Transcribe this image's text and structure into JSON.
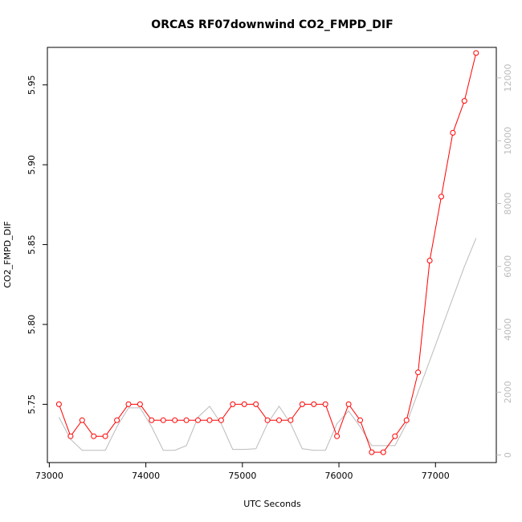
{
  "chart_data": {
    "type": "line",
    "title": "ORCAS RF07downwind CO2_FMPD_DIF",
    "xlabel": "UTC Seconds",
    "ylabel": "CO2_FMPD_DIF",
    "xlim": [
      72980,
      77630
    ],
    "ylim": [
      5.7135,
      5.9735
    ],
    "y2lim": [
      -240,
      12970
    ],
    "x_ticks": [
      73000,
      74000,
      75000,
      76000,
      77000
    ],
    "x_tick_labels": [
      "73000",
      "74000",
      "75000",
      "76000",
      "77000"
    ],
    "y_ticks": [
      5.75,
      5.8,
      5.85,
      5.9,
      5.95
    ],
    "y_tick_labels": [
      "5.75",
      "5.80",
      "5.85",
      "5.90",
      "5.95"
    ],
    "y2_ticks": [
      0,
      2000,
      4000,
      6000,
      8000,
      10000,
      12000
    ],
    "y2_tick_labels": [
      "0",
      "2000",
      "4000",
      "6000",
      "8000",
      "10000",
      "12000"
    ],
    "grid": false,
    "series": [
      {
        "axis": "left",
        "color": "#ff0000",
        "marker": "open-circle",
        "x": [
          73100,
          73220,
          73340,
          73460,
          73580,
          73700,
          73820,
          73940,
          74060,
          74180,
          74300,
          74420,
          74540,
          74660,
          74780,
          74900,
          75020,
          75140,
          75260,
          75380,
          75500,
          75620,
          75740,
          75860,
          75980,
          76100,
          76220,
          76340,
          76460,
          76580,
          76700,
          76820,
          76940,
          77060,
          77180,
          77300,
          77420
        ],
        "values": [
          5.75,
          5.73,
          5.74,
          5.73,
          5.73,
          5.74,
          5.75,
          5.75,
          5.74,
          5.74,
          5.74,
          5.74,
          5.74,
          5.74,
          5.74,
          5.75,
          5.75,
          5.75,
          5.74,
          5.74,
          5.74,
          5.75,
          5.75,
          5.75,
          5.73,
          5.75,
          5.74,
          5.72,
          5.72,
          5.73,
          5.74,
          5.77,
          5.84,
          5.88,
          5.92,
          5.94,
          5.97
        ]
      },
      {
        "axis": "right",
        "color": "#bbbbbb",
        "x": [
          73100,
          73220,
          73340,
          73460,
          73580,
          73700,
          73820,
          73940,
          74060,
          74180,
          74300,
          74420,
          74540,
          74660,
          74780,
          74900,
          75020,
          75140,
          75260,
          75380,
          75500,
          75620,
          75740,
          75860,
          75980,
          76100,
          76220,
          76340,
          76460,
          76580,
          76700,
          76820,
          76940,
          77060,
          77180,
          77300,
          77420
        ],
        "values": [
          1200,
          500,
          150,
          150,
          150,
          900,
          1500,
          1500,
          900,
          150,
          150,
          300,
          1200,
          1550,
          1000,
          180,
          180,
          200,
          1000,
          1550,
          1000,
          200,
          150,
          150,
          1000,
          1400,
          900,
          300,
          300,
          300,
          1000,
          2000,
          3000,
          4000,
          5000,
          6000,
          6900
        ]
      }
    ]
  }
}
